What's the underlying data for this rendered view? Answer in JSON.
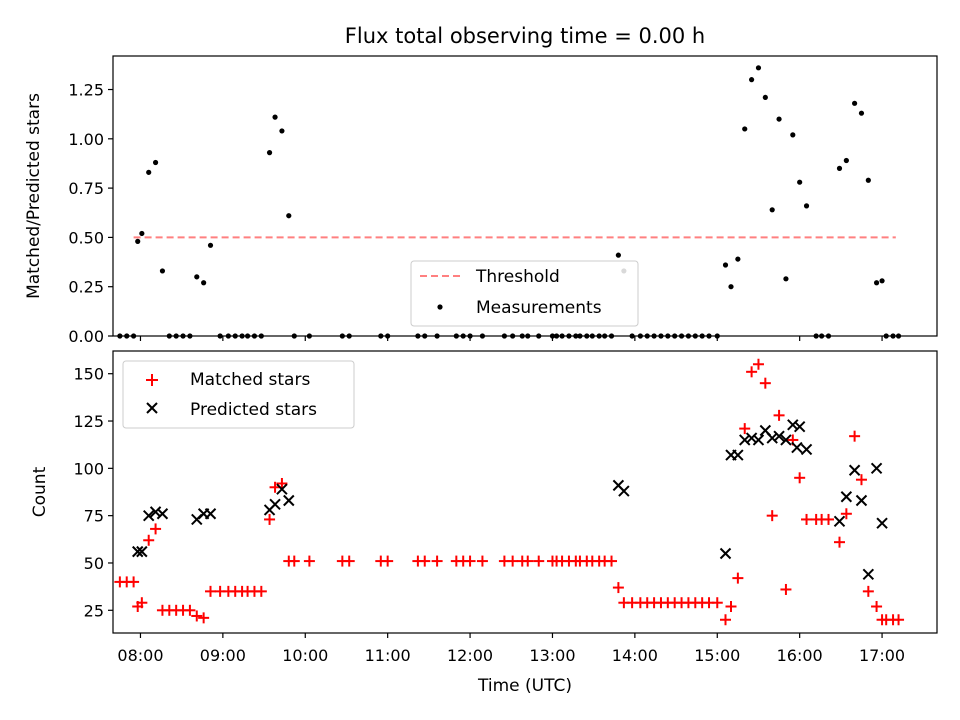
{
  "chart_data": [
    {
      "type": "scatter",
      "title": "Flux total observing time = 0.00 h",
      "ylabel": "Matched/Predicted stars",
      "xlabel": "",
      "xlim": [
        "07:40",
        "17:40"
      ],
      "ylim": [
        0,
        1.42
      ],
      "yticks": [
        "0.00",
        "0.25",
        "0.50",
        "0.75",
        "1.00",
        "1.25"
      ],
      "legend": {
        "position": "lower-center",
        "entries": [
          "Threshold",
          "Measurements"
        ]
      },
      "threshold": {
        "name": "Threshold",
        "value": 0.5,
        "x": [
          "07:55",
          "17:10"
        ],
        "color": "#ff8080"
      },
      "series": [
        {
          "name": "Measurements",
          "marker": "dot",
          "color": "#000000",
          "points": [
            [
              "07:45",
              0
            ],
            [
              "07:50",
              0
            ],
            [
              "07:55",
              0
            ],
            [
              "07:58",
              0.48
            ],
            [
              "08:01",
              0.52
            ],
            [
              "08:06",
              0.83
            ],
            [
              "08:11",
              0.88
            ],
            [
              "08:16",
              0.33
            ],
            [
              "08:21",
              0
            ],
            [
              "08:26",
              0
            ],
            [
              "08:31",
              0
            ],
            [
              "08:36",
              0
            ],
            [
              "08:41",
              0.3
            ],
            [
              "08:46",
              0.27
            ],
            [
              "08:51",
              0.46
            ],
            [
              "08:58",
              0
            ],
            [
              "09:04",
              0
            ],
            [
              "09:09",
              0
            ],
            [
              "09:14",
              0
            ],
            [
              "09:18",
              0
            ],
            [
              "09:23",
              0
            ],
            [
              "09:28",
              0
            ],
            [
              "09:34",
              0.93
            ],
            [
              "09:38",
              1.11
            ],
            [
              "09:43",
              1.04
            ],
            [
              "09:48",
              0.61
            ],
            [
              "09:52",
              0
            ],
            [
              "10:03",
              0
            ],
            [
              "10:27",
              0
            ],
            [
              "10:32",
              0
            ],
            [
              "10:55",
              0
            ],
            [
              "11:00",
              0
            ],
            [
              "11:22",
              0
            ],
            [
              "11:27",
              0
            ],
            [
              "11:36",
              0
            ],
            [
              "11:50",
              0
            ],
            [
              "11:55",
              0
            ],
            [
              "12:00",
              0
            ],
            [
              "12:09",
              0
            ],
            [
              "12:25",
              0
            ],
            [
              "12:31",
              0
            ],
            [
              "12:38",
              0
            ],
            [
              "12:42",
              0
            ],
            [
              "12:50",
              0
            ],
            [
              "13:00",
              0
            ],
            [
              "13:03",
              0
            ],
            [
              "13:07",
              0
            ],
            [
              "13:12",
              0
            ],
            [
              "13:17",
              0
            ],
            [
              "13:20",
              0
            ],
            [
              "13:25",
              0
            ],
            [
              "13:29",
              0
            ],
            [
              "13:34",
              0
            ],
            [
              "13:38",
              0
            ],
            [
              "13:43",
              0
            ],
            [
              "13:48",
              0.41
            ],
            [
              "13:52",
              0.33
            ],
            [
              "13:58",
              0
            ],
            [
              "14:04",
              0
            ],
            [
              "14:09",
              0
            ],
            [
              "14:14",
              0
            ],
            [
              "14:19",
              0
            ],
            [
              "14:24",
              0
            ],
            [
              "14:29",
              0
            ],
            [
              "14:34",
              0
            ],
            [
              "14:39",
              0
            ],
            [
              "14:44",
              0
            ],
            [
              "14:49",
              0
            ],
            [
              "14:54",
              0
            ],
            [
              "15:00",
              0
            ],
            [
              "15:06",
              0.36
            ],
            [
              "15:10",
              0.25
            ],
            [
              "15:15",
              0.39
            ],
            [
              "15:20",
              1.05
            ],
            [
              "15:25",
              1.3
            ],
            [
              "15:30",
              1.36
            ],
            [
              "15:35",
              1.21
            ],
            [
              "15:40",
              0.64
            ],
            [
              "15:45",
              1.1
            ],
            [
              "15:50",
              0.29
            ],
            [
              "15:55",
              1.02
            ],
            [
              "16:00",
              0.78
            ],
            [
              "16:05",
              0.66
            ],
            [
              "16:12",
              0
            ],
            [
              "16:16",
              0
            ],
            [
              "16:21",
              0
            ],
            [
              "16:29",
              0.85
            ],
            [
              "16:34",
              0.89
            ],
            [
              "16:40",
              1.18
            ],
            [
              "16:45",
              1.13
            ],
            [
              "16:50",
              0.79
            ],
            [
              "16:56",
              0.27
            ],
            [
              "17:00",
              0.28
            ],
            [
              "17:03",
              0
            ],
            [
              "17:08",
              0
            ],
            [
              "17:12",
              0
            ]
          ]
        }
      ]
    },
    {
      "type": "scatter",
      "title": "",
      "ylabel": "Count",
      "xlabel": "Time (UTC)",
      "xlim": [
        "07:40",
        "17:40"
      ],
      "ylim": [
        13,
        162
      ],
      "yticks": [
        "25",
        "50",
        "75",
        "100",
        "125",
        "150"
      ],
      "xticks": [
        "08:00",
        "09:00",
        "10:00",
        "11:00",
        "12:00",
        "13:00",
        "14:00",
        "15:00",
        "16:00",
        "17:00"
      ],
      "legend": {
        "position": "top-left",
        "entries": [
          "Matched stars",
          "Predicted stars"
        ]
      },
      "series": [
        {
          "name": "Matched stars",
          "marker": "plus",
          "color": "#ff0000",
          "points": [
            [
              "07:45",
              40
            ],
            [
              "07:50",
              40
            ],
            [
              "07:55",
              40
            ],
            [
              "07:58",
              27
            ],
            [
              "08:01",
              29
            ],
            [
              "08:06",
              62
            ],
            [
              "08:11",
              68
            ],
            [
              "08:16",
              25
            ],
            [
              "08:21",
              25
            ],
            [
              "08:26",
              25
            ],
            [
              "08:31",
              25
            ],
            [
              "08:36",
              25
            ],
            [
              "08:41",
              22
            ],
            [
              "08:46",
              21
            ],
            [
              "08:51",
              35
            ],
            [
              "08:58",
              35
            ],
            [
              "09:04",
              35
            ],
            [
              "09:09",
              35
            ],
            [
              "09:14",
              35
            ],
            [
              "09:18",
              35
            ],
            [
              "09:23",
              35
            ],
            [
              "09:28",
              35
            ],
            [
              "09:34",
              73
            ],
            [
              "09:38",
              90
            ],
            [
              "09:43",
              92
            ],
            [
              "09:48",
              51
            ],
            [
              "09:52",
              51
            ],
            [
              "10:03",
              51
            ],
            [
              "10:27",
              51
            ],
            [
              "10:32",
              51
            ],
            [
              "10:55",
              51
            ],
            [
              "11:00",
              51
            ],
            [
              "11:22",
              51
            ],
            [
              "11:27",
              51
            ],
            [
              "11:36",
              51
            ],
            [
              "11:50",
              51
            ],
            [
              "11:55",
              51
            ],
            [
              "12:00",
              51
            ],
            [
              "12:09",
              51
            ],
            [
              "12:25",
              51
            ],
            [
              "12:31",
              51
            ],
            [
              "12:38",
              51
            ],
            [
              "12:42",
              51
            ],
            [
              "12:50",
              51
            ],
            [
              "13:00",
              51
            ],
            [
              "13:03",
              51
            ],
            [
              "13:07",
              51
            ],
            [
              "13:12",
              51
            ],
            [
              "13:17",
              51
            ],
            [
              "13:20",
              51
            ],
            [
              "13:25",
              51
            ],
            [
              "13:29",
              51
            ],
            [
              "13:34",
              51
            ],
            [
              "13:38",
              51
            ],
            [
              "13:43",
              51
            ],
            [
              "13:48",
              37
            ],
            [
              "13:52",
              29
            ],
            [
              "13:58",
              29
            ],
            [
              "14:04",
              29
            ],
            [
              "14:09",
              29
            ],
            [
              "14:14",
              29
            ],
            [
              "14:19",
              29
            ],
            [
              "14:24",
              29
            ],
            [
              "14:29",
              29
            ],
            [
              "14:34",
              29
            ],
            [
              "14:39",
              29
            ],
            [
              "14:44",
              29
            ],
            [
              "14:49",
              29
            ],
            [
              "14:54",
              29
            ],
            [
              "15:00",
              29
            ],
            [
              "15:06",
              20
            ],
            [
              "15:10",
              27
            ],
            [
              "15:15",
              42
            ],
            [
              "15:20",
              121
            ],
            [
              "15:25",
              151
            ],
            [
              "15:30",
              155
            ],
            [
              "15:35",
              145
            ],
            [
              "15:40",
              75
            ],
            [
              "15:45",
              128
            ],
            [
              "15:50",
              36
            ],
            [
              "15:55",
              115
            ],
            [
              "16:00",
              95
            ],
            [
              "16:05",
              73
            ],
            [
              "16:12",
              73
            ],
            [
              "16:16",
              73
            ],
            [
              "16:21",
              73
            ],
            [
              "16:29",
              61
            ],
            [
              "16:34",
              76
            ],
            [
              "16:40",
              117
            ],
            [
              "16:45",
              94
            ],
            [
              "16:50",
              35
            ],
            [
              "16:56",
              27
            ],
            [
              "17:00",
              20
            ],
            [
              "17:03",
              20
            ],
            [
              "17:08",
              20
            ],
            [
              "17:12",
              20
            ]
          ]
        },
        {
          "name": "Predicted stars",
          "marker": "x",
          "color": "#000000",
          "points": [
            [
              "07:58",
              56
            ],
            [
              "08:01",
              56
            ],
            [
              "08:06",
              75
            ],
            [
              "08:11",
              77
            ],
            [
              "08:16",
              76
            ],
            [
              "08:41",
              73
            ],
            [
              "08:46",
              76
            ],
            [
              "08:51",
              76
            ],
            [
              "09:34",
              78
            ],
            [
              "09:38",
              81
            ],
            [
              "09:43",
              89
            ],
            [
              "09:48",
              83
            ],
            [
              "13:48",
              91
            ],
            [
              "13:52",
              88
            ],
            [
              "15:06",
              55
            ],
            [
              "15:10",
              107
            ],
            [
              "15:15",
              107
            ],
            [
              "15:20",
              115
            ],
            [
              "15:25",
              116
            ],
            [
              "15:30",
              115
            ],
            [
              "15:35",
              120
            ],
            [
              "15:40",
              116
            ],
            [
              "15:45",
              117
            ],
            [
              "15:50",
              115
            ],
            [
              "15:55",
              123
            ],
            [
              "15:58",
              111
            ],
            [
              "16:00",
              122
            ],
            [
              "16:05",
              110
            ],
            [
              "16:29",
              72
            ],
            [
              "16:34",
              85
            ],
            [
              "16:40",
              99
            ],
            [
              "16:45",
              83
            ],
            [
              "16:50",
              44
            ],
            [
              "16:56",
              100
            ],
            [
              "17:00",
              71
            ]
          ]
        }
      ]
    }
  ]
}
